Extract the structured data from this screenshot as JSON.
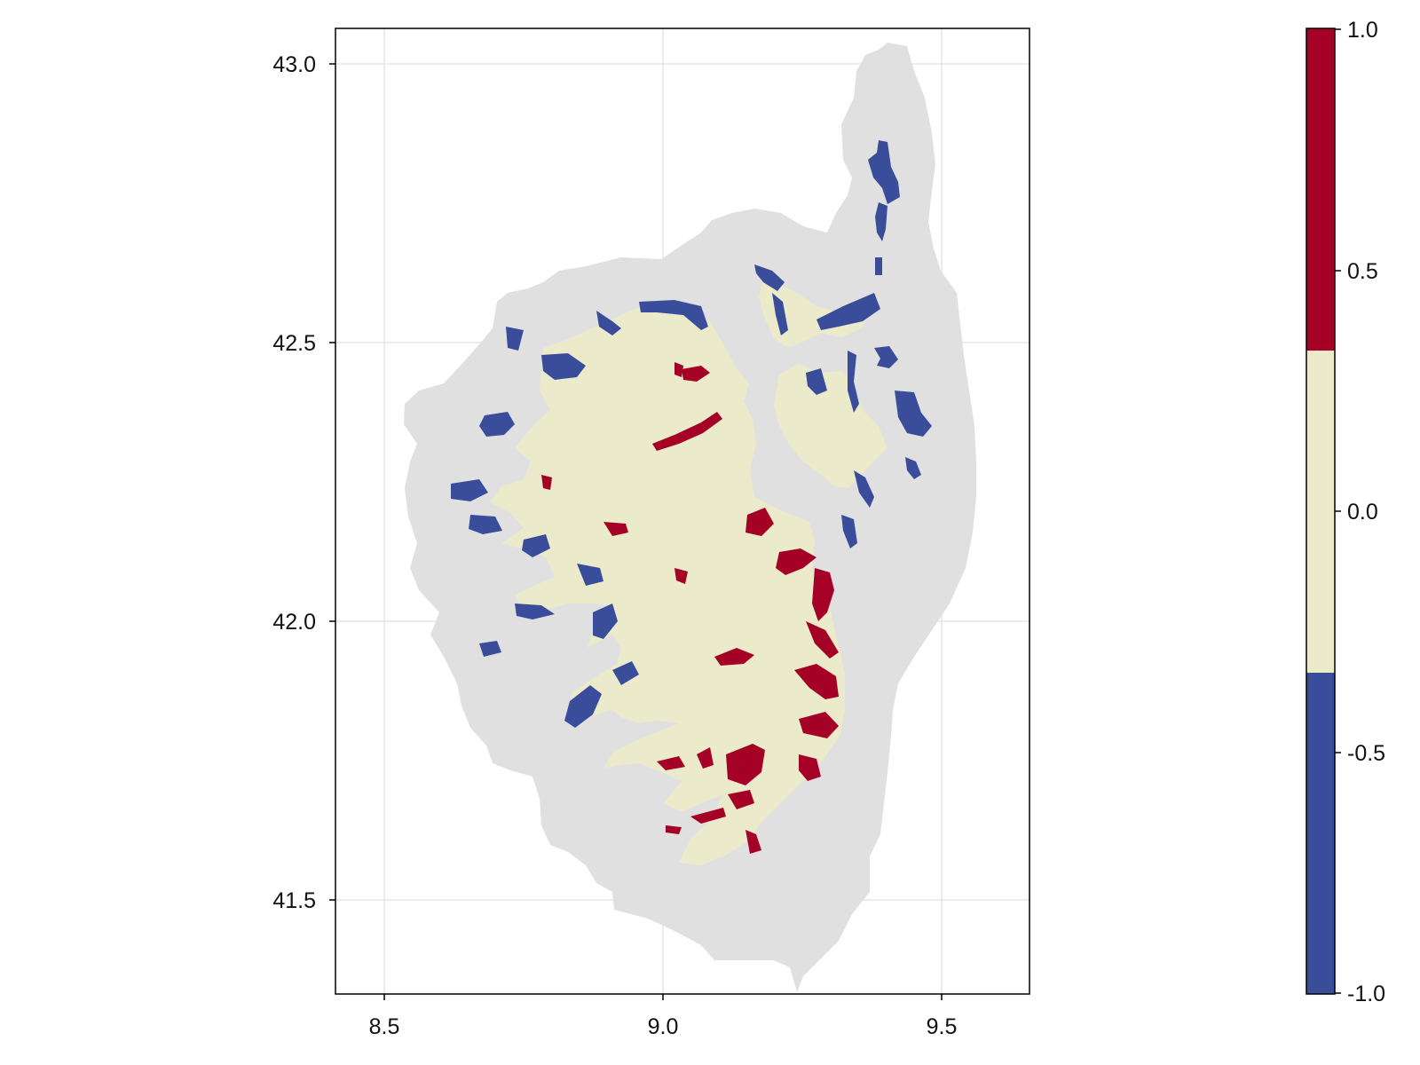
{
  "map": {
    "x_axis": {
      "range": [
        8.413,
        9.654
      ],
      "ticks": [
        8.5,
        9.0,
        9.5
      ],
      "tick_labels": [
        "8.5",
        "9.0",
        "9.5"
      ]
    },
    "y_axis": {
      "range": [
        41.33,
        43.06
      ],
      "ticks": [
        41.5,
        42.0,
        42.5,
        43.0
      ],
      "tick_labels": [
        "41.5",
        "42.0",
        "42.5",
        "43.0"
      ]
    },
    "grid": true,
    "background_land_color": "#e0e0e0",
    "categories": [
      {
        "value": -1,
        "color": "#3a4d9a"
      },
      {
        "value": 0,
        "color": "#ebebcb"
      },
      {
        "value": 1,
        "color": "#a50026"
      }
    ]
  },
  "colorbar": {
    "range": [
      -1.0,
      1.0
    ],
    "ticks": [
      -1.0,
      -0.5,
      0.0,
      0.5,
      1.0
    ],
    "tick_labels": [
      "-1.0",
      "-0.5",
      "0.0",
      "0.5",
      "1.0"
    ],
    "bands": [
      {
        "from": -1.0,
        "to": -0.3333,
        "color": "#3a4d9a"
      },
      {
        "from": -0.3333,
        "to": 0.3333,
        "color": "#ebebcb"
      },
      {
        "from": 0.3333,
        "to": 1.0,
        "color": "#a50026"
      }
    ]
  }
}
